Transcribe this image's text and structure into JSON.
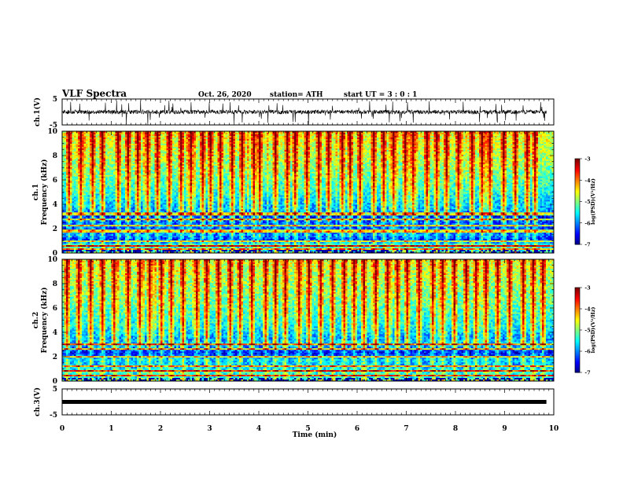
{
  "header": {
    "title": "VLF Spectra",
    "date": "Oct. 26, 2020",
    "station": "station= ATH",
    "start": "start  UT =   3 : 0 : 1"
  },
  "chart_data": [
    {
      "type": "line",
      "panel": "ch1-waveform",
      "ylabel": "ch.1(V)",
      "ylim": [
        -5,
        5
      ],
      "yticks": [
        "5",
        "-5"
      ],
      "xlim": [
        0,
        10
      ],
      "baseline_volts": 0.0,
      "noise_amplitude_volts": 1.0,
      "spike_amplitude_volts": 4.5,
      "data_end_min": 9.85
    },
    {
      "type": "heatmap",
      "panel": "ch1-spectrogram",
      "ylabel": "ch.1\nFrequency (kHz)",
      "ylim": [
        0,
        10
      ],
      "yticks": [
        "0",
        "2",
        "4",
        "6",
        "8",
        "10"
      ],
      "xlim": [
        0,
        10
      ],
      "colorbar": {
        "ticks": [
          "-3",
          "-4",
          "-5",
          "-6",
          "-7"
        ],
        "label": "log(PSD)(V²/Hz)",
        "range": [
          -7,
          -3
        ]
      },
      "profile": [
        [
          0,
          -5.0
        ],
        [
          0.3,
          -5.9
        ],
        [
          0.6,
          -5.2
        ],
        [
          1.0,
          -6.5
        ],
        [
          1.5,
          -6.0
        ],
        [
          2.0,
          -6.3
        ],
        [
          2.5,
          -6.2
        ],
        [
          3.0,
          -6.6
        ],
        [
          3.5,
          -5.9
        ],
        [
          4.5,
          -5.6
        ],
        [
          5.0,
          -5.4
        ],
        [
          6.0,
          -5.2
        ],
        [
          7.5,
          -4.9
        ],
        [
          9.0,
          -4.7
        ],
        [
          10.0,
          -4.5
        ]
      ],
      "lines_khz": [
        0.3,
        0.6,
        1.0,
        1.8,
        2.3,
        2.7,
        3.2
      ],
      "sferic_times_min": [
        0.12,
        0.35,
        0.6,
        0.78,
        1.1,
        1.32,
        1.5,
        1.71,
        1.9,
        2.15,
        2.38,
        2.6,
        2.82,
        3.0,
        3.18,
        3.45,
        3.62,
        3.88,
        4.02,
        4.3,
        4.55,
        4.72,
        4.95,
        5.2,
        5.4,
        5.66,
        5.85,
        6.05,
        6.32,
        6.5,
        6.7,
        6.95,
        7.12,
        7.4,
        7.6,
        7.8,
        8.05,
        8.3,
        8.52,
        8.7,
        8.95,
        9.2,
        9.42,
        9.6
      ]
    },
    {
      "type": "heatmap",
      "panel": "ch2-spectrogram",
      "ylabel": "ch.2\nFrequency (kHz)",
      "ylim": [
        0,
        10
      ],
      "yticks": [
        "0",
        "2",
        "4",
        "6",
        "8",
        "10"
      ],
      "xlim": [
        0,
        10
      ],
      "colorbar": {
        "ticks": [
          "-3",
          "-4",
          "-5",
          "-6",
          "-7"
        ],
        "label": "log(PSD)(V²/Hz)",
        "range": [
          -7,
          -3
        ]
      },
      "profile": [
        [
          0,
          -5.0
        ],
        [
          0.3,
          -5.6
        ],
        [
          0.8,
          -5.4
        ],
        [
          1.2,
          -5.9
        ],
        [
          1.8,
          -5.7
        ],
        [
          2.0,
          -6.3
        ],
        [
          2.3,
          -6.5
        ],
        [
          2.7,
          -6.2
        ],
        [
          3.0,
          -5.7
        ],
        [
          3.5,
          -5.9
        ],
        [
          4.5,
          -5.5
        ],
        [
          5.0,
          -5.4
        ],
        [
          6.0,
          -5.2
        ],
        [
          7.5,
          -5.0
        ],
        [
          9.0,
          -4.8
        ],
        [
          10.0,
          -4.6
        ]
      ],
      "lines_khz": [
        0.4,
        0.8,
        1.2,
        2.0,
        2.6,
        3.0
      ],
      "sferic_times_min": [
        0.08,
        0.3,
        0.55,
        0.82,
        1.05,
        1.3,
        1.55,
        1.75,
        2.0,
        2.2,
        2.45,
        2.7,
        2.9,
        3.15,
        3.4,
        3.6,
        3.85,
        4.1,
        4.33,
        4.5,
        4.78,
        5.0,
        5.25,
        5.48,
        5.7,
        5.9,
        6.12,
        6.35,
        6.6,
        6.78,
        7.0,
        7.25,
        7.5,
        7.7,
        7.95,
        8.2,
        8.4,
        8.62,
        8.85,
        9.1,
        9.35,
        9.55,
        9.75
      ]
    },
    {
      "type": "line",
      "panel": "ch3-waveform",
      "ylabel": "ch.3(V)",
      "ylim": [
        -5,
        5
      ],
      "yticks": [
        "5",
        "-5"
      ],
      "xlim": [
        0,
        10
      ],
      "baseline_volts": 0.0,
      "data_end_min": 9.85
    }
  ],
  "x_axis": {
    "label": "Time (min)",
    "ticks": [
      "0",
      "1",
      "2",
      "3",
      "4",
      "5",
      "6",
      "7",
      "8",
      "9",
      "10"
    ]
  }
}
